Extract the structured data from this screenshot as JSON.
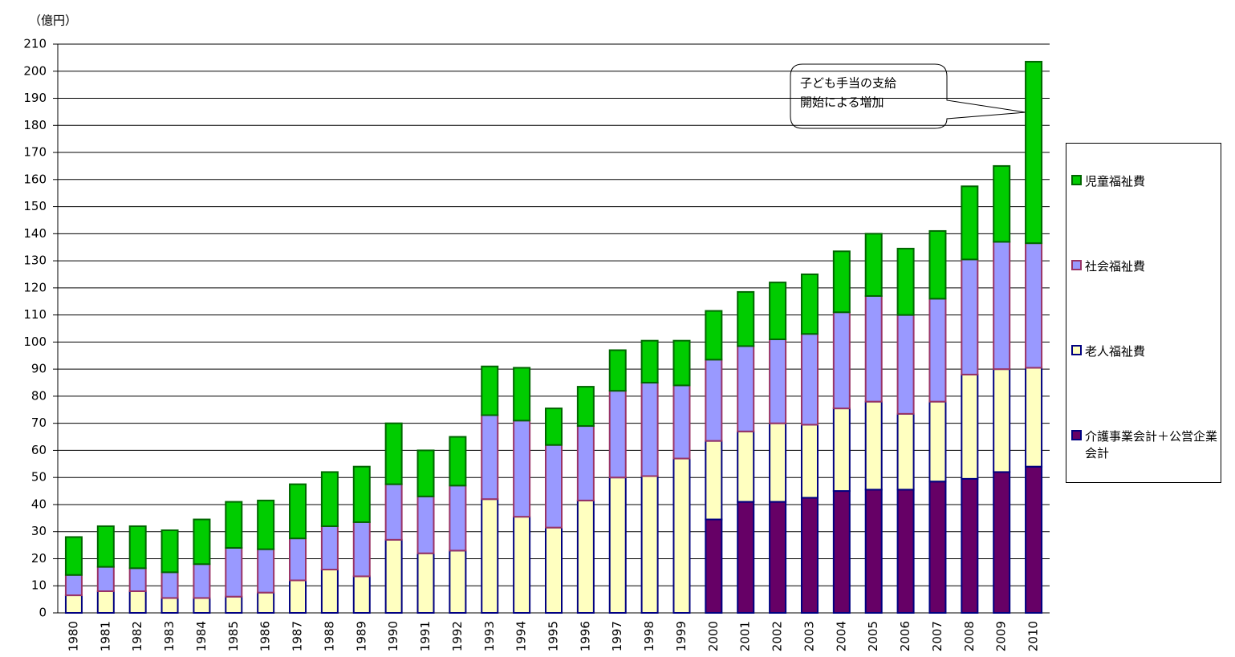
{
  "chart_data": {
    "type": "stacked-bar",
    "y_label": "（億円）",
    "annotation": [
      "子ども手当の支給",
      "開始による増加"
    ],
    "categories": [
      "1980",
      "1981",
      "1982",
      "1983",
      "1984",
      "1985",
      "1986",
      "1987",
      "1988",
      "1989",
      "1990",
      "1991",
      "1992",
      "1993",
      "1994",
      "1995",
      "1996",
      "1997",
      "1998",
      "1999",
      "2000",
      "2001",
      "2002",
      "2003",
      "2004",
      "2005",
      "2006",
      "2007",
      "2008",
      "2009",
      "2010"
    ],
    "series": [
      {
        "name": "介護事業会計＋公営企業会計",
        "color": "#660066",
        "border": "#000080",
        "values": [
          null,
          null,
          null,
          null,
          null,
          null,
          null,
          null,
          null,
          null,
          null,
          null,
          null,
          null,
          null,
          null,
          null,
          null,
          null,
          null,
          34.5,
          41,
          41,
          42.5,
          45,
          45.5,
          45.5,
          48.5,
          49.5,
          52,
          54
        ]
      },
      {
        "name": "老人福祉費",
        "color": "#ffffc0",
        "border": "#000080",
        "values": [
          6.5,
          8,
          8,
          5.5,
          5.5,
          6,
          7.5,
          12,
          16,
          13.5,
          27,
          22,
          23,
          42,
          35.5,
          31.5,
          41.5,
          50,
          50.5,
          57,
          29,
          26,
          29,
          27,
          30.5,
          32.5,
          28,
          29.5,
          38.5,
          38,
          36.5
        ]
      },
      {
        "name": "社会福祉費",
        "color": "#9999ff",
        "border": "#993366",
        "values": [
          7.5,
          9,
          8.5,
          9.5,
          12.5,
          18,
          16,
          15.5,
          16,
          20,
          20.5,
          21,
          24,
          31,
          35.5,
          30.5,
          27.5,
          32,
          34.5,
          27,
          30,
          31.5,
          31,
          33.5,
          35.5,
          39,
          36.5,
          38,
          42.5,
          47,
          46
        ]
      },
      {
        "name": "児童福祉費",
        "color": "#00cc00",
        "border": "#006600",
        "values": [
          14,
          15,
          15.5,
          15.5,
          16.5,
          17,
          18,
          20,
          20,
          20.5,
          22.5,
          17,
          18,
          18,
          19.5,
          13.5,
          14.5,
          15,
          15.5,
          16.5,
          18,
          20,
          21,
          22,
          22.5,
          23,
          24.5,
          25,
          27,
          28,
          67
        ]
      }
    ],
    "ylim": [
      0,
      210
    ],
    "yticks": [
      0,
      10,
      20,
      30,
      40,
      50,
      60,
      70,
      80,
      90,
      100,
      110,
      120,
      130,
      140,
      150,
      160,
      170,
      180,
      190,
      200,
      210
    ],
    "grid": true
  }
}
